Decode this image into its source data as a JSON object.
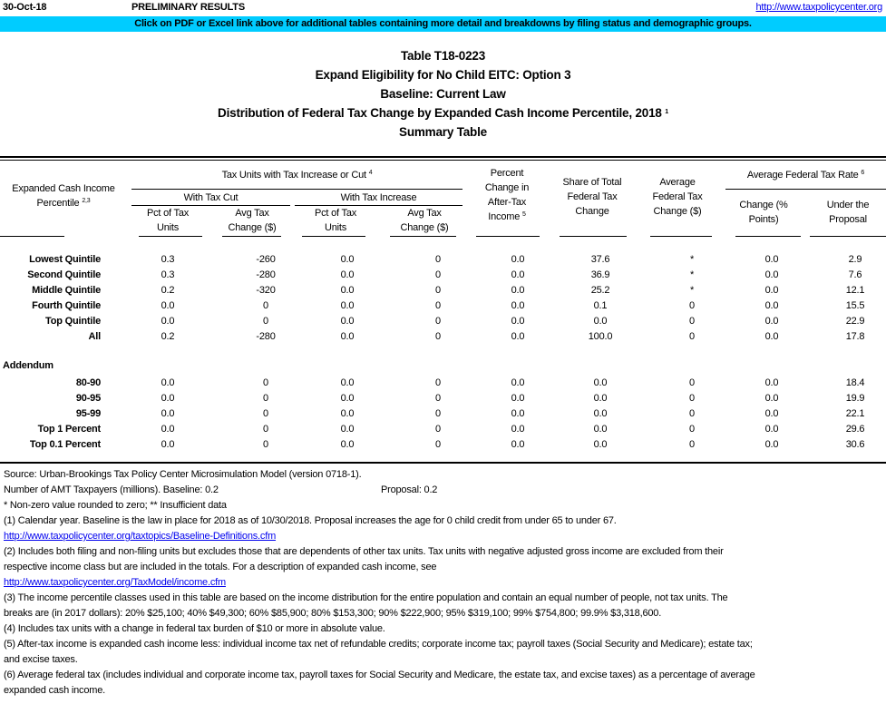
{
  "header": {
    "date": "30-Oct-18",
    "status": "PRELIMINARY RESULTS",
    "link": "http://www.taxpolicycenter.org",
    "banner": "Click on PDF or Excel link above for additional tables containing more detail and breakdowns by filing status and demographic groups.",
    "banner_color": "#00CCFF"
  },
  "titles": [
    "Table T18-0223",
    "Expand Eligibility for No Child EITC: Option 3",
    "Baseline: Current Law",
    "Distribution of Federal Tax Change by Expanded Cash Income Percentile, 2018",
    "Summary Table"
  ],
  "title_sup": "1",
  "columns": {
    "label": "Expanded Cash Income Percentile",
    "label_sup": "2,3",
    "group": "Tax Units with Tax Increase or Cut",
    "group_sup": "4",
    "cut": "With Tax Cut",
    "increase": "With Tax Increase",
    "pct_units": "Pct of Tax Units",
    "avg_change": "Avg Tax Change ($)",
    "pct_after_tax": "Percent Change in After-Tax Income",
    "pct_after_tax_sup": "5",
    "share": "Share of Total Federal Tax Change",
    "avg_fed": "Average Federal Tax Change ($)",
    "rate_group": "Average Federal Tax Rate",
    "rate_sup": "6",
    "rate_change": "Change (% Points)",
    "rate_under": "Under the Proposal"
  },
  "rows": [
    [
      "Lowest Quintile",
      "0.3",
      "-260",
      "0.0",
      "0",
      "0.0",
      "37.6",
      "*",
      "0.0",
      "2.9"
    ],
    [
      "Second Quintile",
      "0.3",
      "-280",
      "0.0",
      "0",
      "0.0",
      "36.9",
      "*",
      "0.0",
      "7.6"
    ],
    [
      "Middle Quintile",
      "0.2",
      "-320",
      "0.0",
      "0",
      "0.0",
      "25.2",
      "*",
      "0.0",
      "12.1"
    ],
    [
      "Fourth Quintile",
      "0.0",
      "0",
      "0.0",
      "0",
      "0.0",
      "0.1",
      "0",
      "0.0",
      "15.5"
    ],
    [
      "Top Quintile",
      "0.0",
      "0",
      "0.0",
      "0",
      "0.0",
      "0.0",
      "0",
      "0.0",
      "22.9"
    ],
    [
      "All",
      "0.2",
      "-280",
      "0.0",
      "0",
      "0.0",
      "100.0",
      "0",
      "0.0",
      "17.8"
    ]
  ],
  "addendum_label": "Addendum",
  "addendum": [
    [
      "80-90",
      "0.0",
      "0",
      "0.0",
      "0",
      "0.0",
      "0.0",
      "0",
      "0.0",
      "18.4"
    ],
    [
      "90-95",
      "0.0",
      "0",
      "0.0",
      "0",
      "0.0",
      "0.0",
      "0",
      "0.0",
      "19.9"
    ],
    [
      "95-99",
      "0.0",
      "0",
      "0.0",
      "0",
      "0.0",
      "0.0",
      "0",
      "0.0",
      "22.1"
    ],
    [
      "Top 1 Percent",
      "0.0",
      "0",
      "0.0",
      "0",
      "0.0",
      "0.0",
      "0",
      "0.0",
      "29.6"
    ],
    [
      "Top 0.1 Percent",
      "0.0",
      "0",
      "0.0",
      "0",
      "0.0",
      "0.0",
      "0",
      "0.0",
      "30.6"
    ]
  ],
  "notes": {
    "source": "Source: Urban-Brookings Tax Policy Center Microsimulation Model (version 0718-1).",
    "amt": "Number of AMT Taxpayers (millions).  Baseline: 0.2",
    "amt_proposal": "Proposal: 0.2",
    "legend": "* Non-zero value rounded to zero; ** Insufficient data",
    "n1": "(1) Calendar year. Baseline is the law in place for 2018 as of 10/30/2018. Proposal increases the age for 0 child credit from under 65 to under 67.",
    "link1": "http://www.taxpolicycenter.org/taxtopics/Baseline-Definitions.cfm",
    "n2a": "(2) Includes both filing and non-filing units but excludes those that are dependents of other tax units. Tax units with negative adjusted gross income are excluded from their",
    "n2b": "respective income class but are included in the totals. For a description of expanded cash income, see",
    "link2": "http://www.taxpolicycenter.org/TaxModel/income.cfm",
    "n3a": "(3) The income percentile classes used in this table are based on the income distribution for the entire population and contain an equal number of people, not tax units. The",
    "n3b": "breaks are (in 2017 dollars): 20% $25,100; 40% $49,300; 60% $85,900; 80% $153,300; 90% $222,900; 95% $319,100; 99% $754,800; 99.9% $3,318,600.",
    "n4": "(4) Includes tax units with a change in federal tax burden of $10 or more in absolute value.",
    "n5a": "(5) After-tax income is expanded cash income less: individual income tax net of refundable credits; corporate income tax; payroll taxes (Social Security and Medicare); estate tax;",
    "n5b": "and excise taxes.",
    "n6a": "(6) Average federal tax (includes individual and corporate income tax, payroll taxes for Social Security and Medicare, the estate tax, and excise taxes) as a percentage of average",
    "n6b": "expanded cash income."
  }
}
